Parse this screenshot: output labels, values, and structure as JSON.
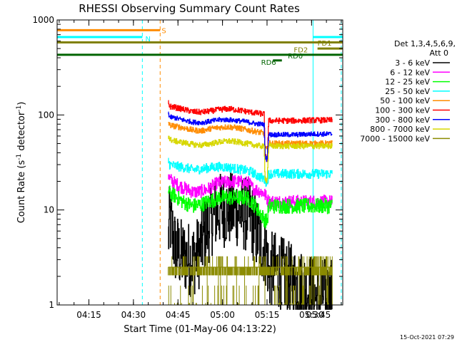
{
  "chart_data": {
    "type": "line",
    "title": "RHESSI Observing Summary Count Rates",
    "xlabel": "Start Time (01-May-06 04:13:22)",
    "ylabel_prefix": "Count Rate (s",
    "ylabel_sup": "-1",
    "ylabel_suffix": " detector",
    "ylabel_end": ")",
    "yscale": "log",
    "ylim": [
      1,
      1000
    ],
    "x_range_minutes": [
      4.3,
      100.5
    ],
    "x_ticks": [
      {
        "label": "04:15",
        "minute": 15
      },
      {
        "label": "04:30",
        "minute": 30
      },
      {
        "label": "04:45",
        "minute": 45
      },
      {
        "label": "05:00",
        "minute": 60
      },
      {
        "label": "05:15",
        "minute": 75
      },
      {
        "label": "05:30",
        "minute": 90
      },
      {
        "label": "05:45",
        "minute": 105
      }
    ],
    "y_ticks": [
      {
        "label": "1",
        "value": 1
      },
      {
        "label": "10",
        "value": 10
      },
      {
        "label": "100",
        "value": 100
      },
      {
        "label": "1000",
        "value": 1000
      }
    ],
    "legend_header": [
      "Det 1,3,4,5,6,9,",
      "Att 0"
    ],
    "series": [
      {
        "name": "3 - 6 keV",
        "color": "#000000",
        "noise": 0.4,
        "points": [
          [
            41.7,
            5
          ],
          [
            42.2,
            8
          ],
          [
            43,
            6
          ],
          [
            44,
            4
          ],
          [
            46,
            3.3
          ],
          [
            50,
            3
          ],
          [
            52,
            3.6
          ],
          [
            53,
            4.5
          ],
          [
            55,
            6.5
          ],
          [
            57,
            9
          ],
          [
            59,
            10
          ],
          [
            62,
            10
          ],
          [
            65,
            10
          ],
          [
            67,
            9
          ],
          [
            69,
            9
          ],
          [
            70,
            7.5
          ],
          [
            71,
            6
          ],
          [
            73,
            4.5
          ],
          [
            75,
            3.5
          ],
          [
            75.5,
            2
          ],
          [
            77,
            2.5
          ],
          [
            79,
            2.2
          ],
          [
            81,
            2
          ],
          [
            84,
            1.7
          ],
          [
            86,
            1.6
          ],
          [
            88,
            1.5
          ],
          [
            90,
            1.4
          ],
          [
            92,
            1.1
          ],
          [
            94,
            1.3
          ],
          [
            96,
            1.2
          ],
          [
            97,
            1.3
          ]
        ]
      },
      {
        "name": "6 - 12 keV",
        "color": "#ff00ff",
        "noise": 0.07,
        "points": [
          [
            41.7,
            24
          ],
          [
            42.2,
            21
          ],
          [
            44,
            19
          ],
          [
            47,
            17
          ],
          [
            50,
            15.5
          ],
          [
            52,
            15.5
          ],
          [
            55,
            16.5
          ],
          [
            58,
            19
          ],
          [
            61,
            19.5
          ],
          [
            64,
            20
          ],
          [
            67,
            19.5
          ],
          [
            69,
            19
          ],
          [
            70,
            17
          ],
          [
            72,
            16
          ],
          [
            74,
            15
          ],
          [
            75,
            13
          ],
          [
            75.5,
            12.2
          ],
          [
            80,
            12.2
          ],
          [
            85,
            12.2
          ],
          [
            90,
            12.2
          ],
          [
            97,
            12.2
          ]
        ]
      },
      {
        "name": "12 - 25 keV",
        "color": "#00ff00",
        "noise": 0.08,
        "points": [
          [
            41.7,
            16
          ],
          [
            42.2,
            15
          ],
          [
            44,
            14
          ],
          [
            47,
            12
          ],
          [
            50,
            11
          ],
          [
            53,
            11.5
          ],
          [
            56,
            12.5
          ],
          [
            59,
            13.5
          ],
          [
            62,
            13.5
          ],
          [
            65,
            13.5
          ],
          [
            68,
            13.5
          ],
          [
            70,
            12
          ],
          [
            72,
            10
          ],
          [
            74,
            8
          ],
          [
            75,
            7.5
          ],
          [
            75.5,
            11
          ],
          [
            80,
            11
          ],
          [
            85,
            11
          ],
          [
            90,
            11
          ],
          [
            97,
            11
          ]
        ]
      },
      {
        "name": "25 - 50 keV",
        "color": "#00ffff",
        "noise": 0.05,
        "points": [
          [
            41.7,
            33
          ],
          [
            42.2,
            30
          ],
          [
            44,
            29
          ],
          [
            47,
            28
          ],
          [
            50,
            26.5
          ],
          [
            53,
            27
          ],
          [
            56,
            28
          ],
          [
            59,
            28.5
          ],
          [
            62,
            28
          ],
          [
            65,
            27
          ],
          [
            68,
            26
          ],
          [
            70,
            25
          ],
          [
            71,
            23.5
          ],
          [
            73,
            22
          ],
          [
            74,
            21
          ],
          [
            75,
            19
          ],
          [
            75.5,
            24
          ],
          [
            80,
            24
          ],
          [
            85,
            24
          ],
          [
            90,
            24
          ],
          [
            97,
            24
          ]
        ]
      },
      {
        "name": "50 - 100 keV",
        "color": "#ff8c00",
        "noise": 0.03,
        "points": [
          [
            41.7,
            84
          ],
          [
            42.2,
            78
          ],
          [
            44,
            76
          ],
          [
            47,
            73
          ],
          [
            50,
            69
          ],
          [
            53,
            68
          ],
          [
            56,
            72
          ],
          [
            59,
            74
          ],
          [
            62,
            75
          ],
          [
            65,
            73
          ],
          [
            68,
            70
          ],
          [
            71,
            67
          ],
          [
            73,
            65
          ],
          [
            74,
            64
          ],
          [
            74.3,
            46
          ],
          [
            75,
            42
          ],
          [
            75.5,
            50
          ],
          [
            80,
            50
          ],
          [
            85,
            50
          ],
          [
            90,
            50
          ],
          [
            97,
            50
          ]
        ]
      },
      {
        "name": "100 - 300 keV",
        "color": "#ff0000",
        "noise": 0.03,
        "points": [
          [
            41.7,
            135
          ],
          [
            42.2,
            123
          ],
          [
            44,
            120
          ],
          [
            47,
            114
          ],
          [
            50,
            108
          ],
          [
            53,
            107
          ],
          [
            56,
            110
          ],
          [
            59,
            114
          ],
          [
            62,
            116
          ],
          [
            65,
            113
          ],
          [
            68,
            109
          ],
          [
            71,
            105
          ],
          [
            73,
            103
          ],
          [
            74,
            102
          ],
          [
            74.3,
            37
          ],
          [
            75,
            33
          ],
          [
            75.5,
            87
          ],
          [
            80,
            87
          ],
          [
            85,
            87
          ],
          [
            90,
            88
          ],
          [
            97,
            88
          ]
        ]
      },
      {
        "name": "300 - 800 keV",
        "color": "#0000ff",
        "noise": 0.025,
        "points": [
          [
            41.7,
            105
          ],
          [
            42.2,
            95
          ],
          [
            44,
            93
          ],
          [
            47,
            88
          ],
          [
            50,
            84
          ],
          [
            53,
            83
          ],
          [
            56,
            86
          ],
          [
            59,
            89
          ],
          [
            62,
            89
          ],
          [
            65,
            87
          ],
          [
            68,
            85
          ],
          [
            71,
            81
          ],
          [
            73,
            80
          ],
          [
            74,
            79
          ],
          [
            74.3,
            36
          ],
          [
            75,
            34
          ],
          [
            75.5,
            62
          ],
          [
            80,
            62
          ],
          [
            85,
            62
          ],
          [
            90,
            63
          ],
          [
            97,
            63
          ]
        ]
      },
      {
        "name": "800 - 7000 keV",
        "color": "#d7d700",
        "noise": 0.03,
        "points": [
          [
            41.7,
            62
          ],
          [
            42.2,
            55
          ],
          [
            44,
            53
          ],
          [
            47,
            51
          ],
          [
            50,
            49
          ],
          [
            53,
            48
          ],
          [
            56,
            50
          ],
          [
            59,
            52
          ],
          [
            62,
            53
          ],
          [
            65,
            52
          ],
          [
            68,
            50
          ],
          [
            71,
            48
          ],
          [
            73,
            47
          ],
          [
            74,
            46
          ],
          [
            74.3,
            22
          ],
          [
            75,
            20
          ],
          [
            75.5,
            47
          ],
          [
            80,
            47
          ],
          [
            85,
            47
          ],
          [
            90,
            47
          ],
          [
            97,
            47
          ]
        ]
      },
      {
        "name": "7000 - 15000 keV",
        "color": "#8b8b00",
        "noise": 0,
        "points": [
          [
            41.7,
            2.5
          ],
          [
            97,
            2.5
          ]
        ]
      }
    ],
    "state_bars": [
      {
        "label": "S",
        "color": "#ff8c00",
        "value": 780,
        "segments": [
          [
            4.3,
            39
          ]
        ],
        "label_minute": 39.5,
        "label_value": 780
      },
      {
        "label": "N",
        "color": "#00ffff",
        "value": 660,
        "segments": [
          [
            4.3,
            33
          ],
          [
            90.5,
            100.5
          ]
        ],
        "label_minute": 34,
        "label_value": 640
      },
      {
        "label": "FD1",
        "color": "#808000",
        "value": 580,
        "segments": [
          [
            4.3,
            100.5
          ]
        ],
        "label_minute": 92,
        "label_value": 575
      },
      {
        "label": "FD2",
        "color": "#808000",
        "value": 500,
        "segments": [
          [
            92,
            100.5
          ]
        ],
        "label_minute": 84,
        "label_value": 490
      },
      {
        "label": "RD0",
        "color": "#006400",
        "value": 430,
        "segments": [
          [
            4.3,
            100.5
          ]
        ],
        "label_minute": 82,
        "label_value": 420
      },
      {
        "label": "RD6",
        "color": "#006400",
        "value": 375,
        "segments": [
          [
            77,
            80
          ]
        ],
        "label_minute": 73,
        "label_value": 360
      }
    ],
    "vertical_markers": [
      {
        "minute": 4.3,
        "color": "#00ffff",
        "style": "solid"
      },
      {
        "minute": 33,
        "color": "#00ffff",
        "style": "dashed"
      },
      {
        "minute": 39,
        "color": "#ff8c00",
        "style": "dashed"
      },
      {
        "minute": 90.5,
        "color": "#00ffff",
        "style": "solid"
      },
      {
        "minute": 100,
        "color": "#00ffff",
        "style": "dashed"
      }
    ]
  },
  "footer": {
    "timestamp": "15-Oct-2021 07:29"
  }
}
